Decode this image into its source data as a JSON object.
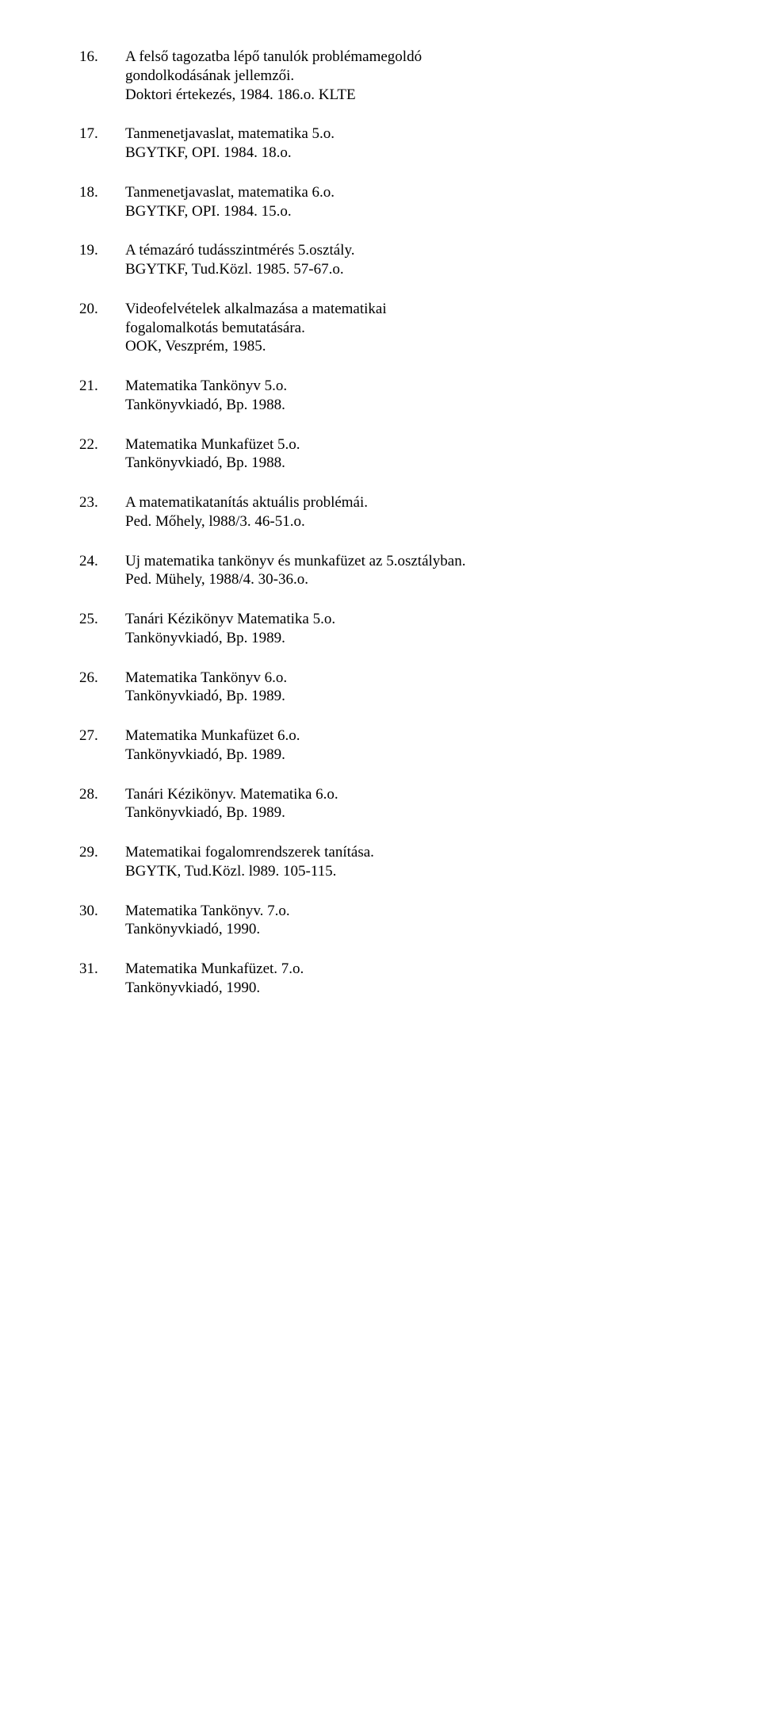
{
  "entries": [
    {
      "num": "16.",
      "lines": [
        "A felső tagozatba lépő tanulók problémamegoldó",
        "gondolkodásának jellemzői.",
        "Doktori értekezés, 1984. 186.o. KLTE"
      ]
    },
    {
      "num": "17.",
      "lines": [
        "Tanmenetjavaslat, matematika 5.o.",
        "BGYTKF, OPI. 1984. 18.o."
      ]
    },
    {
      "num": "18.",
      "lines": [
        "Tanmenetjavaslat, matematika 6.o.",
        "BGYTKF, OPI. 1984. 15.o."
      ]
    },
    {
      "num": "19.",
      "lines": [
        "A témazáró tudásszintmérés 5.osztály.",
        "BGYTKF, Tud.Közl. 1985. 57-67.o."
      ]
    },
    {
      "num": "20.",
      "lines": [
        "Videofelvételek alkalmazása a matematikai",
        "fogalomalkotás bemutatására.",
        "OOK, Veszprém, 1985."
      ]
    },
    {
      "num": "21.",
      "lines": [
        "Matematika Tankönyv 5.o.",
        "Tankönyvkiadó, Bp. 1988."
      ]
    },
    {
      "num": "22.",
      "lines": [
        "Matematika Munkafüzet 5.o.",
        "Tankönyvkiadó, Bp. 1988."
      ]
    },
    {
      "num": "23.",
      "lines": [
        "A matematikatanítás aktuális problémái.",
        "Ped. Mőhely, l988/3. 46-51.o."
      ]
    },
    {
      "num": "24.",
      "lines": [
        "Uj matematika tankönyv és munkafüzet az 5.osztályban.",
        "Ped. Mühely, 1988/4. 30-36.o."
      ]
    },
    {
      "num": "25.",
      "lines": [
        "Tanári Kézikönyv Matematika 5.o.",
        "Tankönyvkiadó, Bp. 1989."
      ]
    },
    {
      "num": "26.",
      "lines": [
        "Matematika Tankönyv 6.o.",
        "Tankönyvkiadó, Bp. 1989."
      ]
    },
    {
      "num": "27.",
      "lines": [
        "Matematika Munkafüzet 6.o.",
        "Tankönyvkiadó, Bp. 1989."
      ]
    },
    {
      "num": "28.",
      "lines": [
        "Tanári Kézikönyv. Matematika 6.o.",
        "Tankönyvkiadó, Bp. 1989."
      ]
    },
    {
      "num": "29.",
      "lines": [
        "Matematikai fogalomrendszerek tanítása.",
        "BGYTK, Tud.Közl. l989. 105-115."
      ]
    },
    {
      "num": "30.",
      "lines": [
        "Matematika Tankönyv. 7.o.",
        "Tankönyvkiadó, 1990."
      ]
    },
    {
      "num": "31.",
      "lines": [
        "Matematika Munkafüzet. 7.o.",
        "Tankönyvkiadó, 1990."
      ]
    }
  ]
}
